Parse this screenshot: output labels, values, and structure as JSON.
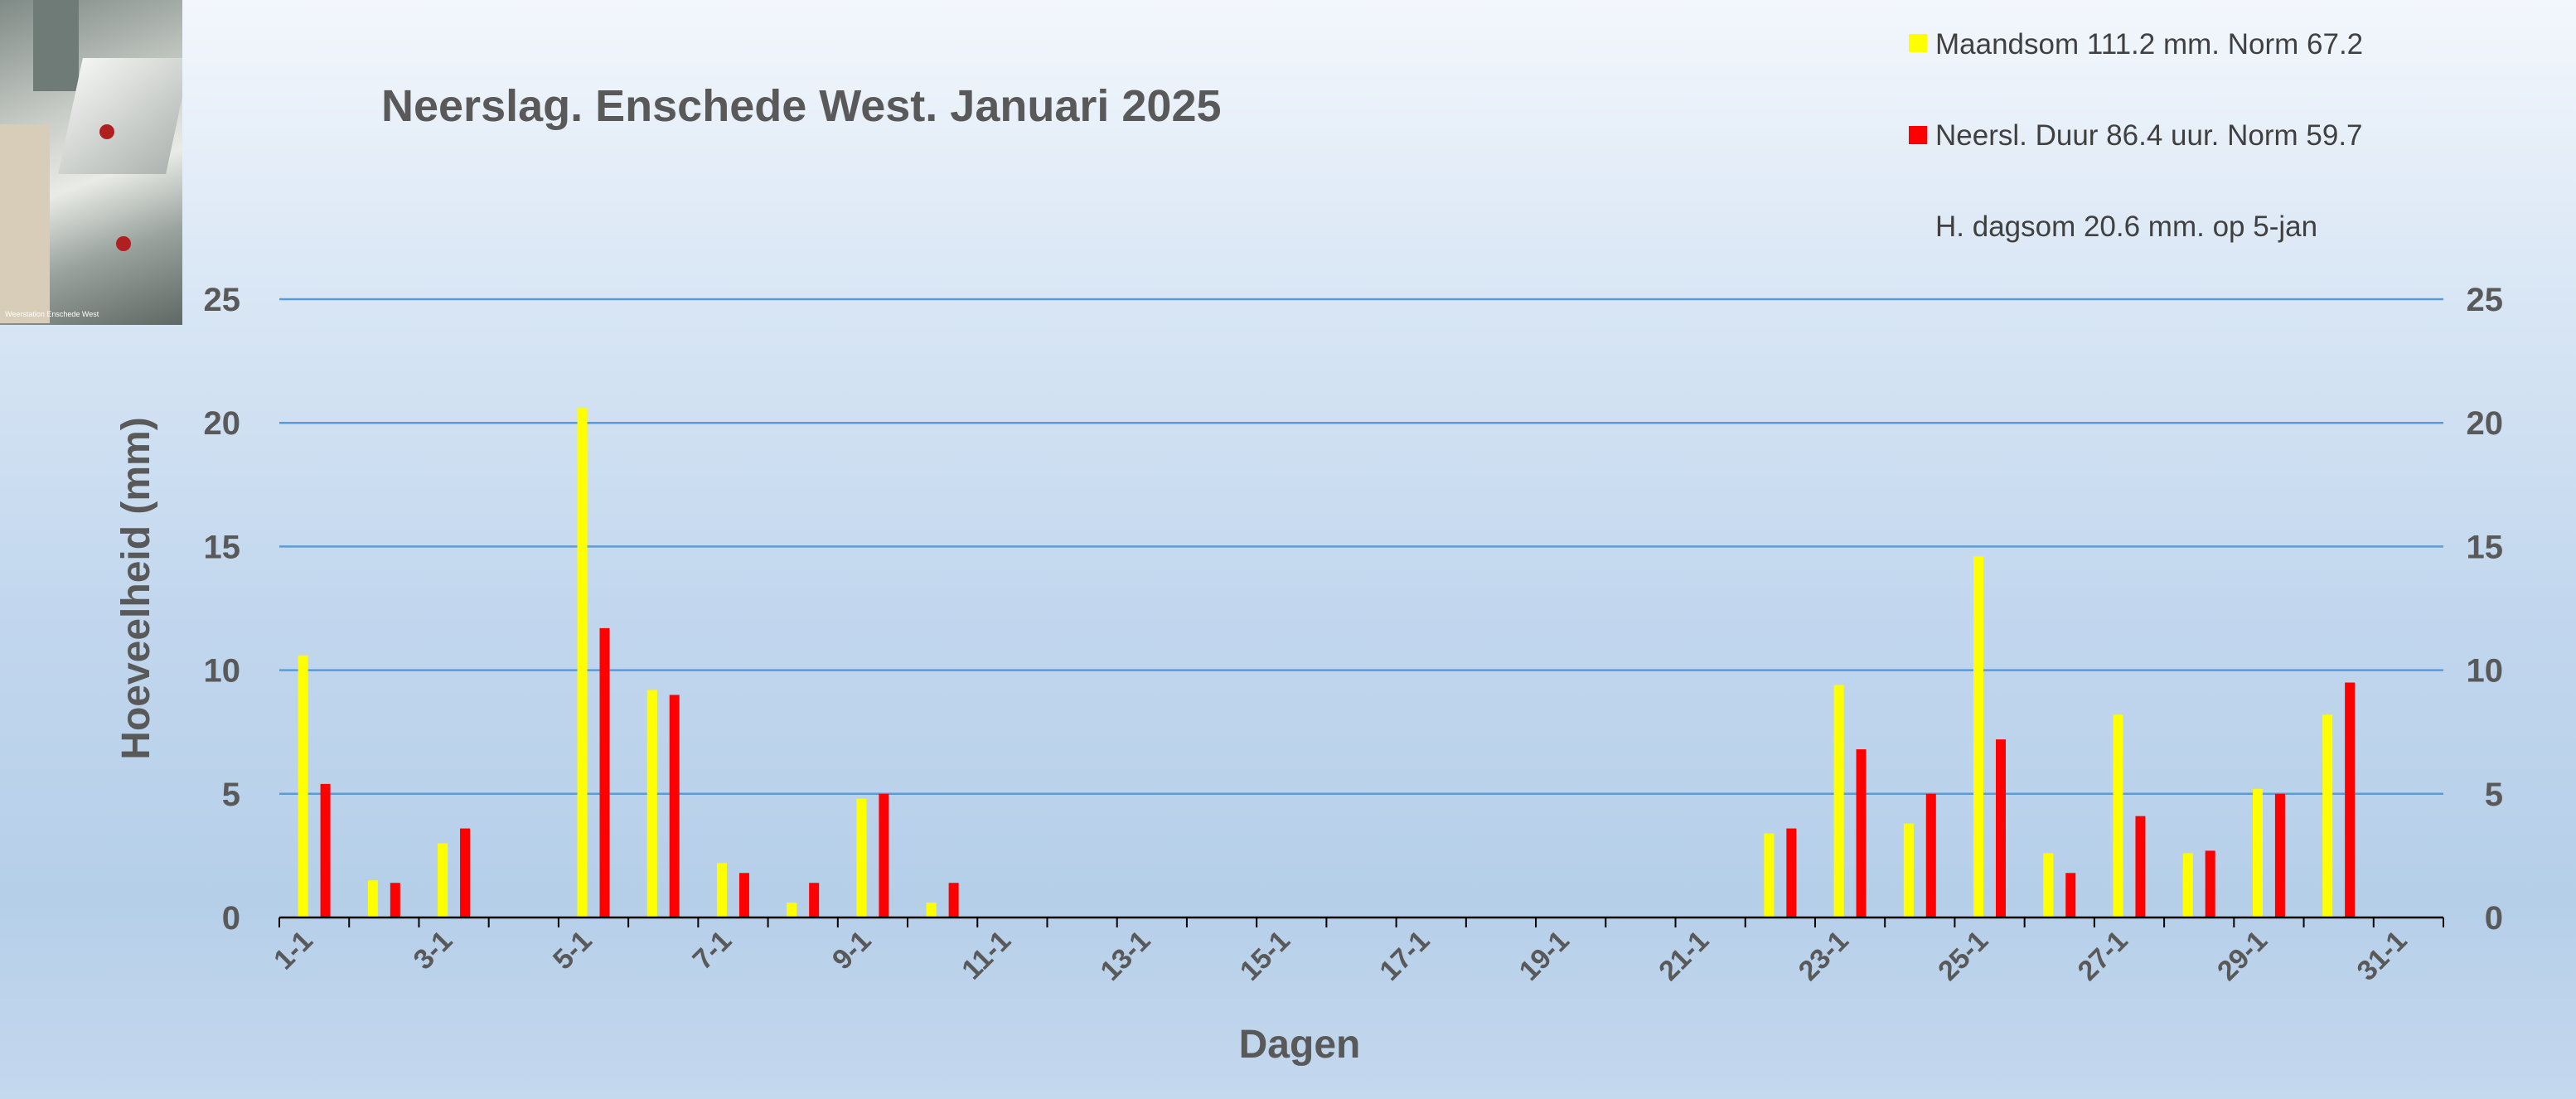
{
  "chart_data": {
    "type": "bar",
    "title": "Neerslag. Enschede West. Januari 2025",
    "xlabel": "Dagen",
    "ylabel": "Hoeveelheid (mm)",
    "ylim": [
      0,
      25
    ],
    "yticks": [
      0,
      5,
      10,
      15,
      20,
      25
    ],
    "secondary_yticks": [
      0,
      5,
      10,
      15,
      20,
      25
    ],
    "grid": true,
    "legend_position": "top-right",
    "tick_labels": [
      "1-1",
      "3-1",
      "5-1",
      "7-1",
      "9-1",
      "11-1",
      "13-1",
      "15-1",
      "17-1",
      "19-1",
      "21-1",
      "23-1",
      "25-1",
      "27-1",
      "29-1",
      "31-1"
    ],
    "categories": [
      "1-1",
      "2-1",
      "3-1",
      "4-1",
      "5-1",
      "6-1",
      "7-1",
      "8-1",
      "9-1",
      "10-1",
      "11-1",
      "12-1",
      "13-1",
      "14-1",
      "15-1",
      "16-1",
      "17-1",
      "18-1",
      "19-1",
      "20-1",
      "21-1",
      "22-1",
      "23-1",
      "24-1",
      "25-1",
      "26-1",
      "27-1",
      "28-1",
      "29-1",
      "30-1",
      "31-1"
    ],
    "series": [
      {
        "name": "Maandsom 111.2 mm. Norm 67.2",
        "color": "#ffff00",
        "values": [
          10.6,
          1.5,
          3.0,
          0,
          20.6,
          9.2,
          2.2,
          0.6,
          4.8,
          0.6,
          0,
          0,
          0,
          0,
          0,
          0,
          0,
          0,
          0,
          0,
          0,
          3.4,
          9.4,
          3.8,
          14.6,
          2.6,
          8.2,
          2.6,
          5.2,
          8.2,
          0
        ]
      },
      {
        "name": "Neersl. Duur 86.4 uur. Norm 59.7",
        "color": "#ff0000",
        "values": [
          5.4,
          1.4,
          3.6,
          0,
          11.7,
          9.0,
          1.8,
          1.4,
          5.0,
          1.4,
          0,
          0,
          0,
          0,
          0,
          0,
          0,
          0,
          0,
          0,
          0,
          3.6,
          6.8,
          5.0,
          7.2,
          1.8,
          4.1,
          2.7,
          5.0,
          9.5,
          0
        ]
      }
    ],
    "annotation": "H. dagsom 20.6 mm.  op  5-jan"
  },
  "photo_caption": "Weerstation Enschede West"
}
